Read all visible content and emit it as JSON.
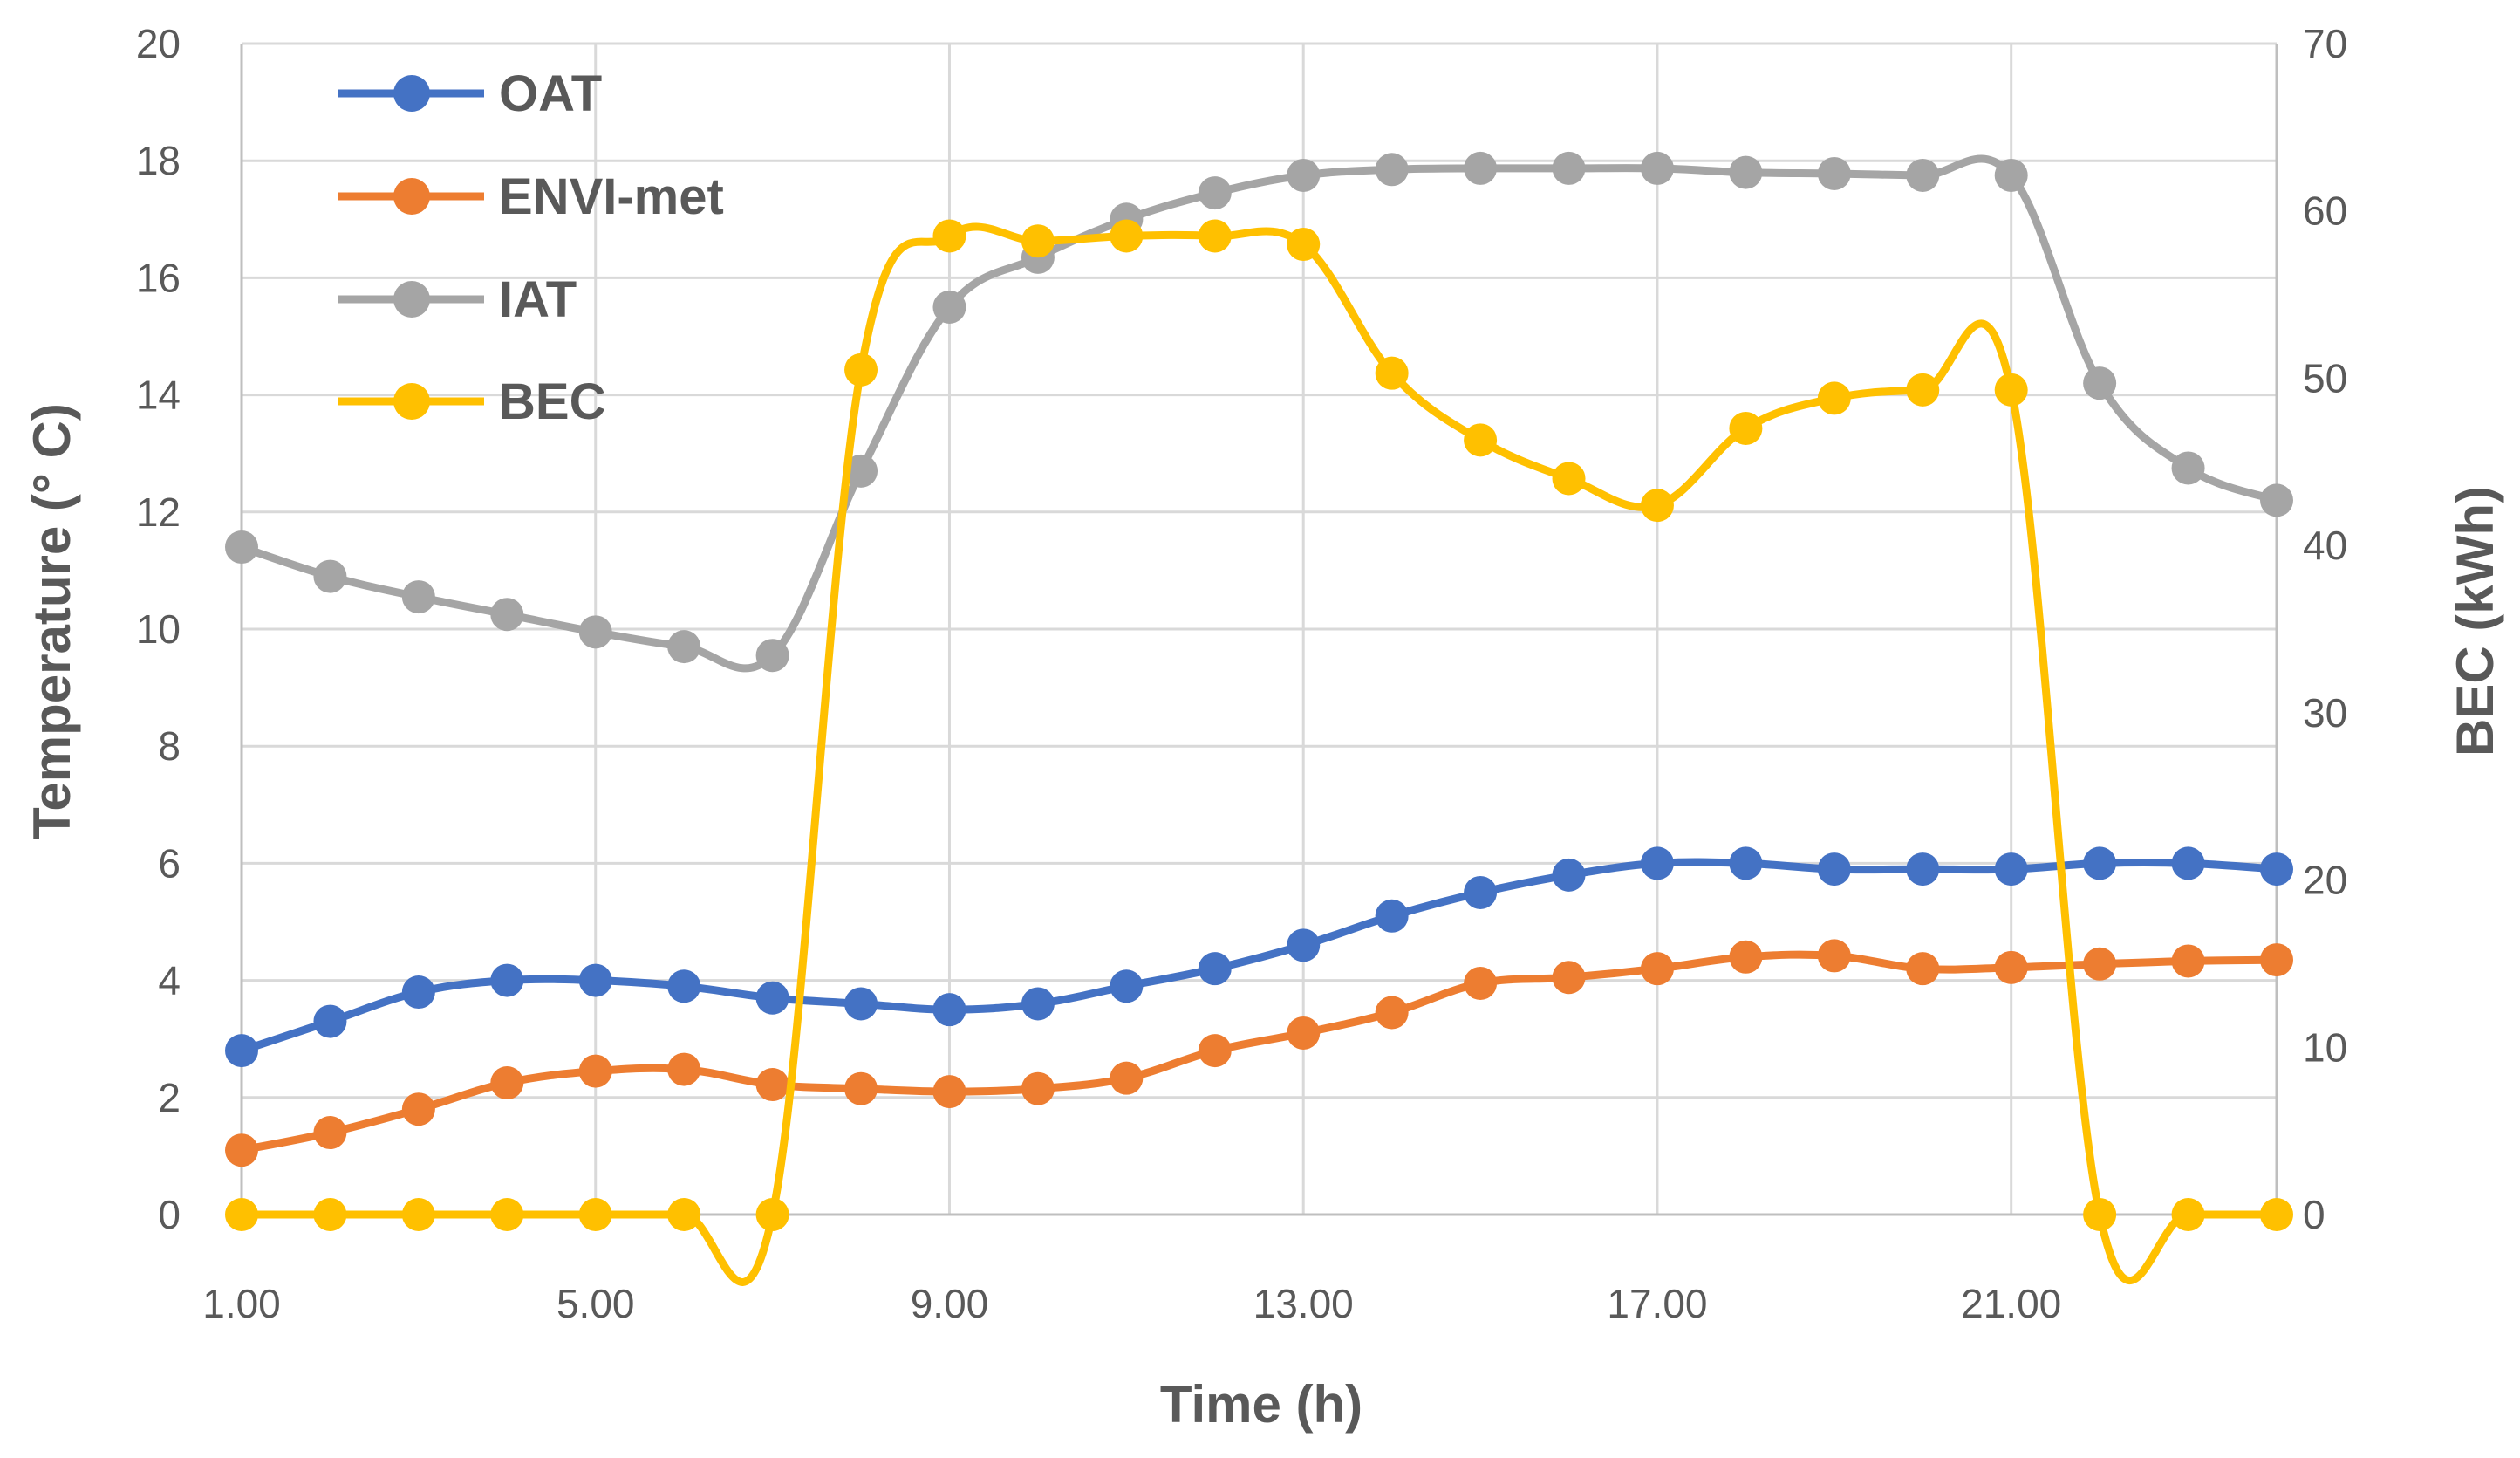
{
  "chart_data": {
    "type": "line",
    "title": "",
    "xlabel": "Time (h)",
    "ylabel": "Temperature (° C)",
    "y2label": "BEC (kWh)",
    "x": [
      1,
      2,
      3,
      4,
      5,
      6,
      7,
      8,
      9,
      10,
      11,
      12,
      13,
      14,
      15,
      16,
      17,
      18,
      19,
      20,
      21,
      22,
      23,
      24
    ],
    "xlim": [
      1,
      24
    ],
    "xticks": [
      1,
      5,
      9,
      13,
      17,
      21
    ],
    "xtick_labels": [
      "1.00",
      "5.00",
      "9.00",
      "13.00",
      "17.00",
      "21.00"
    ],
    "ylim": [
      0,
      20
    ],
    "yticks": [
      0,
      2,
      4,
      6,
      8,
      10,
      12,
      14,
      16,
      18,
      20
    ],
    "ytick_labels": [
      "0",
      "2",
      "4",
      "6",
      "8",
      "10",
      "12",
      "14",
      "16",
      "18",
      "20"
    ],
    "y2lim": [
      0,
      70
    ],
    "y2ticks": [
      0,
      10,
      20,
      30,
      40,
      50,
      60,
      70
    ],
    "y2tick_labels": [
      "0",
      "10",
      "20",
      "30",
      "40",
      "50",
      "60",
      "70"
    ],
    "grid": true,
    "legend_position": "top-left",
    "series": [
      {
        "name": "OAT",
        "axis": "left",
        "color": "#4472c4",
        "values": [
          2.8,
          3.3,
          3.8,
          4.0,
          4.0,
          3.9,
          3.7,
          3.6,
          3.5,
          3.6,
          3.9,
          4.2,
          4.6,
          5.1,
          5.5,
          5.8,
          6.0,
          6.0,
          5.9,
          5.9,
          5.9,
          6.0,
          6.0,
          5.9
        ]
      },
      {
        "name": "ENVI-met",
        "axis": "left",
        "color": "#ed7d31",
        "values": [
          1.1,
          1.4,
          1.8,
          2.25,
          2.45,
          2.48,
          2.22,
          2.15,
          2.1,
          2.15,
          2.33,
          2.8,
          3.1,
          3.45,
          3.95,
          4.05,
          4.2,
          4.4,
          4.42,
          4.2,
          4.22,
          4.28,
          4.33,
          4.35
        ]
      },
      {
        "name": "IAT",
        "axis": "left",
        "color": "#a5a5a5",
        "values": [
          11.4,
          10.9,
          10.55,
          10.25,
          9.95,
          9.7,
          9.55,
          12.7,
          15.5,
          16.35,
          17.0,
          17.45,
          17.75,
          17.85,
          17.87,
          17.87,
          17.87,
          17.8,
          17.78,
          17.75,
          17.75,
          14.2,
          12.75,
          12.2
        ]
      },
      {
        "name": "BEC",
        "axis": "right",
        "color": "#ffc000",
        "values": [
          0,
          0,
          0,
          0,
          0,
          0,
          0,
          50.5,
          58.5,
          58.2,
          58.5,
          58.5,
          58.0,
          50.3,
          46.3,
          44.0,
          42.4,
          47.0,
          48.8,
          49.3,
          49.3,
          0,
          0,
          0
        ]
      }
    ]
  }
}
